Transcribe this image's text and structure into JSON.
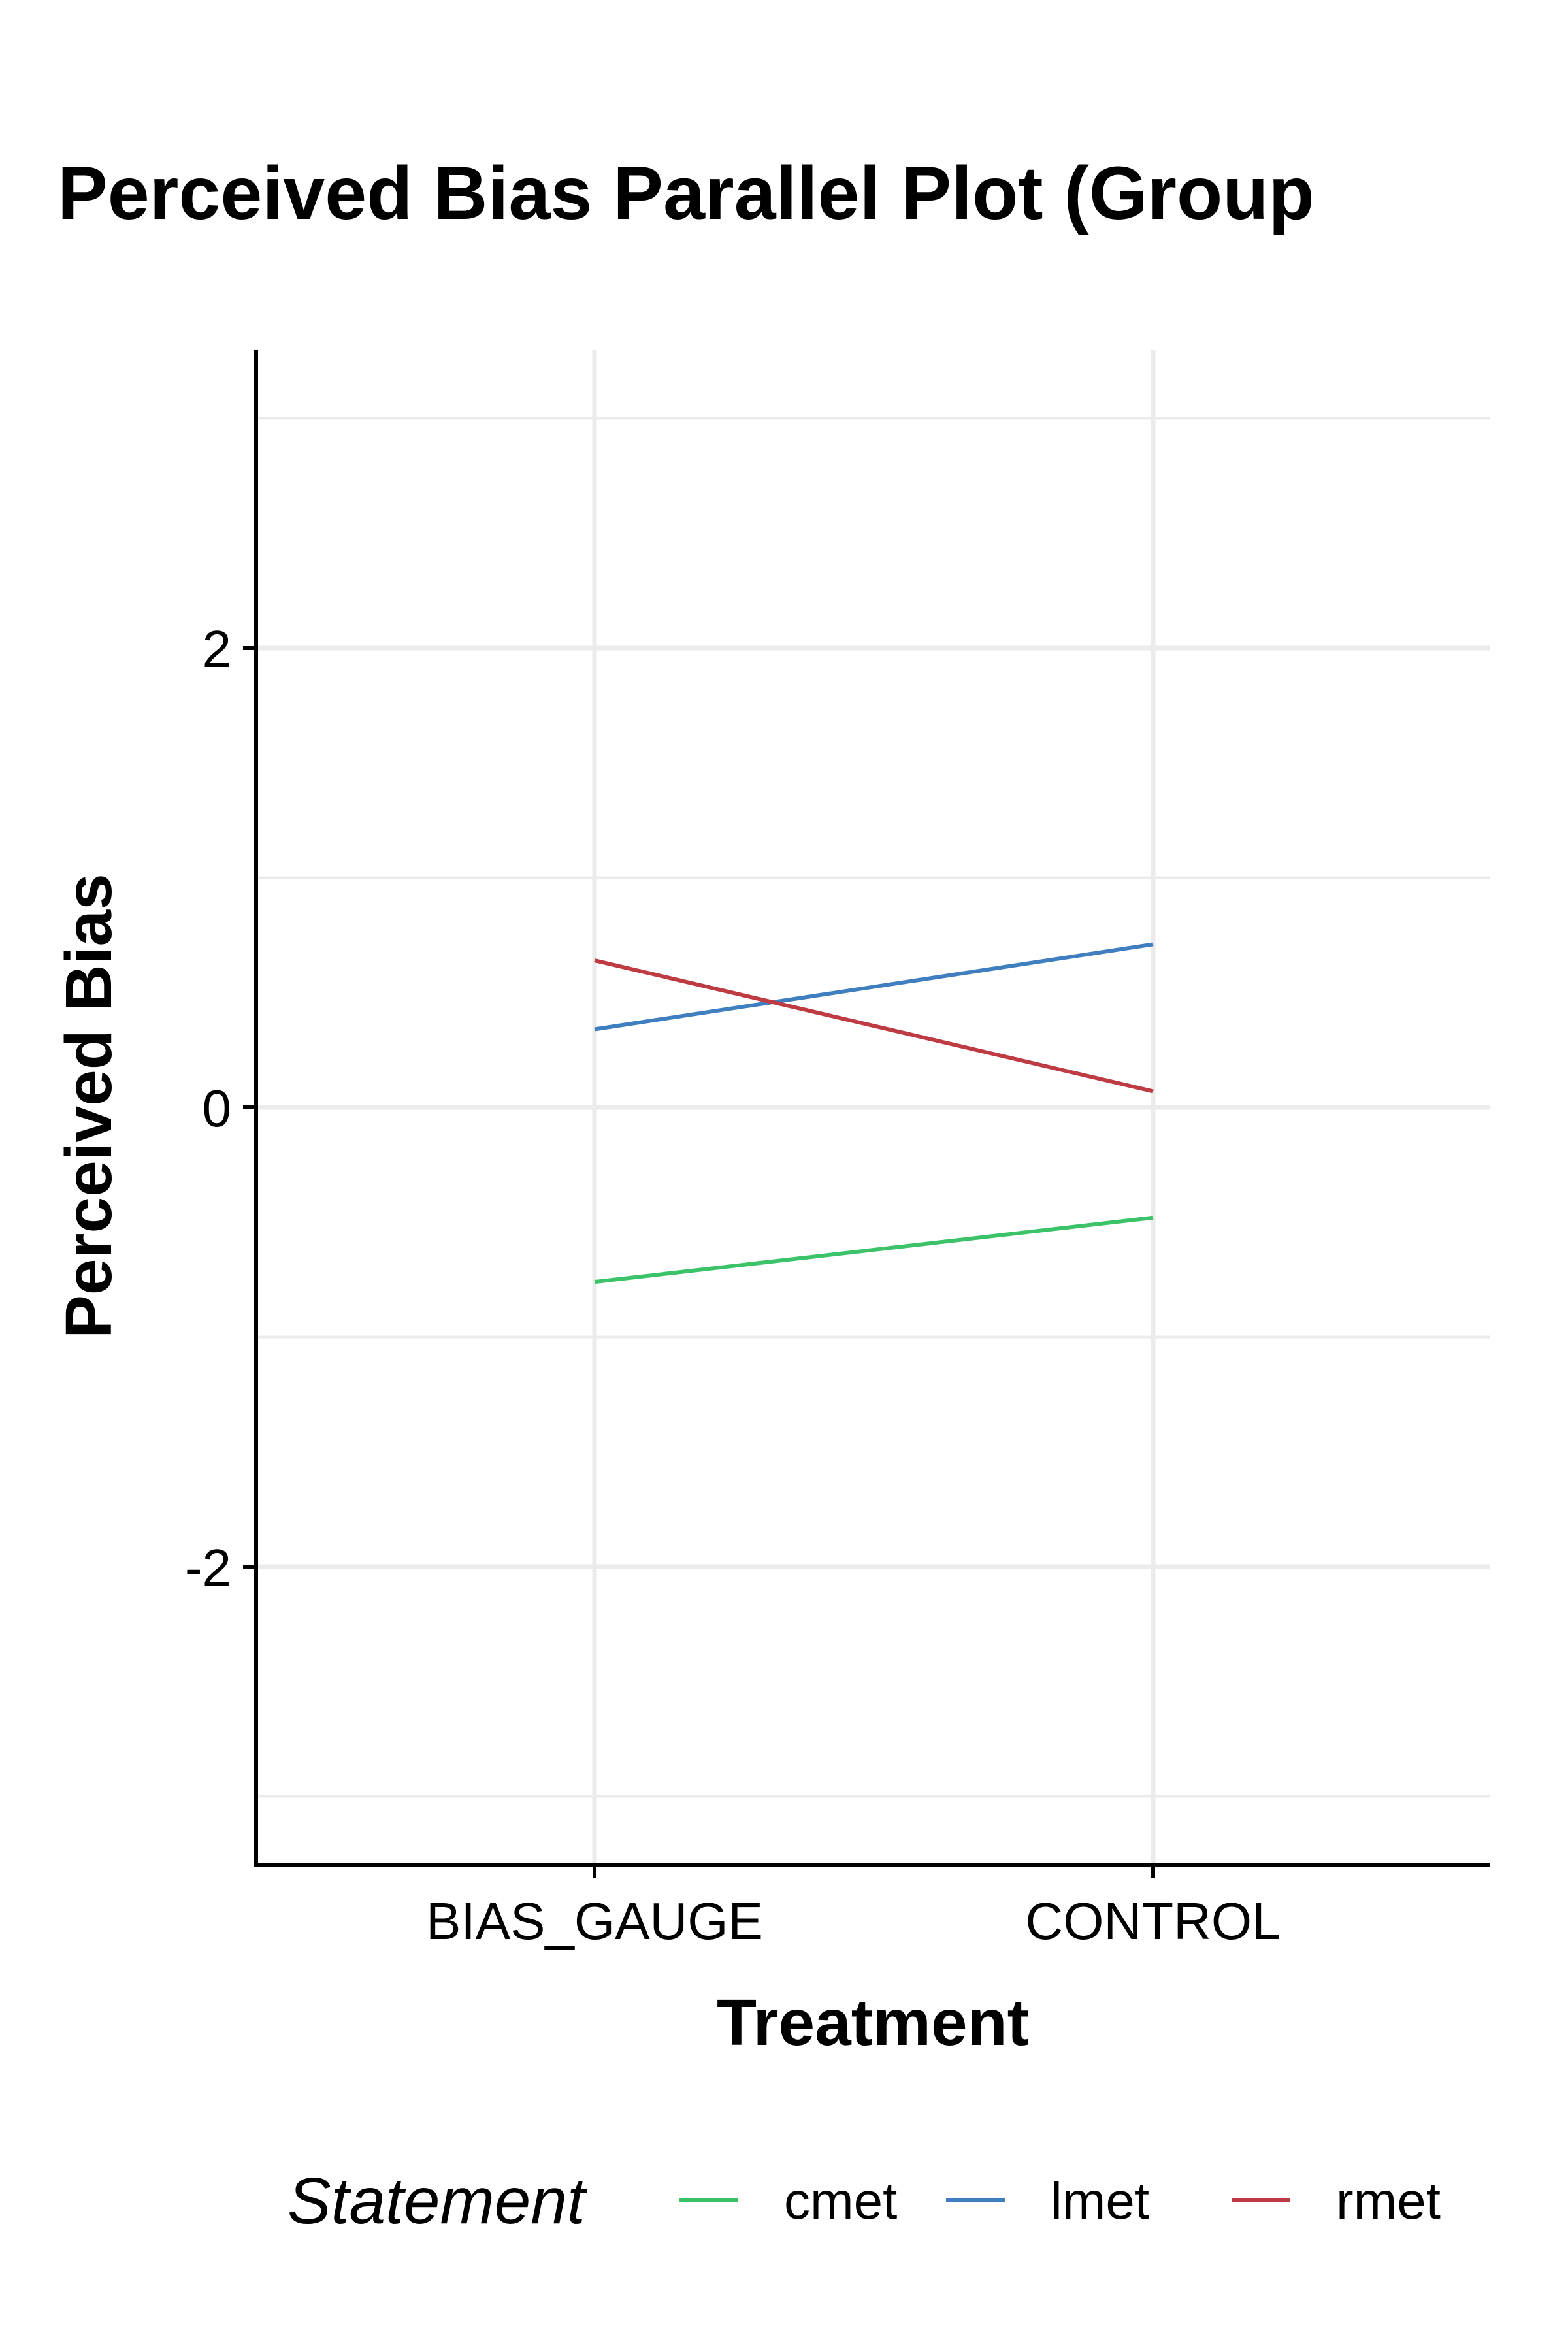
{
  "chart_data": {
    "type": "line",
    "title": "Perceived Bias Parallel Plot (Group",
    "xlabel": "Treatment",
    "ylabel": "Perceived Bias",
    "categories": [
      "BIAS_GAUGE",
      "CONTROL"
    ],
    "ylim": [
      -3.3,
      3.3
    ],
    "yticks": [
      -2,
      0,
      2
    ],
    "ytick_labels": [
      "-2",
      "0",
      "2"
    ],
    "grid": true,
    "legend": {
      "title": "Statement",
      "position": "bottom"
    },
    "series": [
      {
        "name": "cmet",
        "color": "#3cc36a",
        "values": [
          -0.76,
          -0.48
        ]
      },
      {
        "name": "lmet",
        "color": "#3f7fbf",
        "values": [
          0.34,
          0.71
        ]
      },
      {
        "name": "rmet",
        "color": "#be3b44",
        "values": [
          0.64,
          0.07
        ]
      }
    ]
  }
}
